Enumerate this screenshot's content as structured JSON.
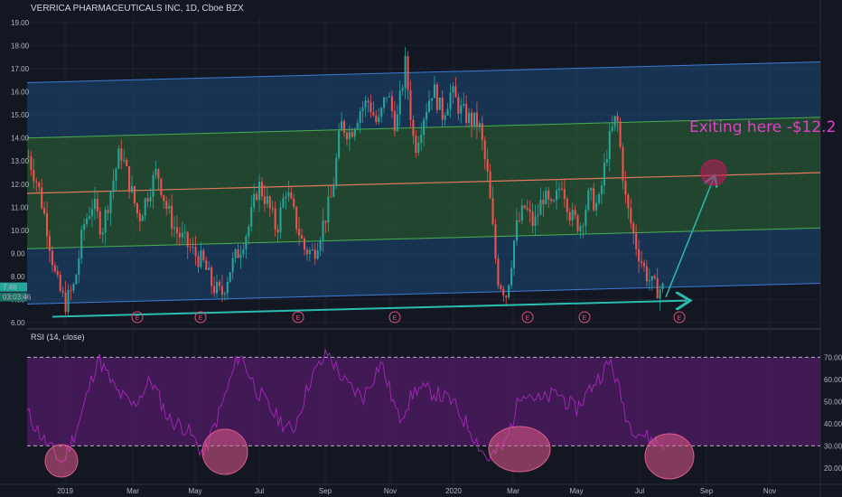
{
  "chart_data": [
    {
      "type": "candlestick",
      "title": "VERRICA PHARMACEUTICALS INC, 1D, Cboe BZX",
      "ylim": [
        5.8,
        19.2
      ],
      "y_ticks": [
        "19.00",
        "18.00",
        "17.00",
        "16.00",
        "15.00",
        "14.00",
        "13.00",
        "12.00",
        "11.00",
        "10.00",
        "9.00",
        "8.00",
        "7.00",
        "6.00"
      ],
      "x_ticks": [
        "2019",
        "Mar",
        "May",
        "Jul",
        "Sep",
        "Nov",
        "2020",
        "Mar",
        "May",
        "Jul",
        "Sep",
        "Nov"
      ],
      "price_label": "7.46",
      "countdown_label": "03:03:46",
      "approx_closes": [
        {
          "x": "Dec 2018",
          "y": 13.2
        },
        {
          "x": "Dec 2018",
          "y": 12.0
        },
        {
          "x": "Dec 2018",
          "y": 10.2
        },
        {
          "x": "Dec 2018",
          "y": 7.8
        },
        {
          "x": "Dec 2018",
          "y": 6.8
        },
        {
          "x": "Jan 2019",
          "y": 7.6
        },
        {
          "x": "Jan 2019",
          "y": 10.2
        },
        {
          "x": "Jan 2019",
          "y": 11.2
        },
        {
          "x": "Feb 2019",
          "y": 10.0
        },
        {
          "x": "Feb 2019",
          "y": 11.8
        },
        {
          "x": "Feb 2019",
          "y": 13.5
        },
        {
          "x": "Feb 2019",
          "y": 12.0
        },
        {
          "x": "Mar 2019",
          "y": 10.5
        },
        {
          "x": "Mar 2019",
          "y": 11.6
        },
        {
          "x": "Mar 2019",
          "y": 12.6
        },
        {
          "x": "Apr 2019",
          "y": 11.0
        },
        {
          "x": "Apr 2019",
          "y": 10.0
        },
        {
          "x": "Apr 2019",
          "y": 9.5
        },
        {
          "x": "May 2019",
          "y": 9.0
        },
        {
          "x": "May 2019",
          "y": 8.6
        },
        {
          "x": "Jun 2019",
          "y": 7.6
        },
        {
          "x": "Jun 2019",
          "y": 7.2
        },
        {
          "x": "Jun 2019",
          "y": 8.4
        },
        {
          "x": "Jun 2019",
          "y": 9.2
        },
        {
          "x": "Jul 2019",
          "y": 10.2
        },
        {
          "x": "Jul 2019",
          "y": 12.0
        },
        {
          "x": "Jul 2019",
          "y": 11.2
        },
        {
          "x": "Aug 2019",
          "y": 10.0
        },
        {
          "x": "Aug 2019",
          "y": 11.8
        },
        {
          "x": "Aug 2019",
          "y": 10.5
        },
        {
          "x": "Aug 2019",
          "y": 9.2
        },
        {
          "x": "Aug 2019",
          "y": 9.0
        },
        {
          "x": "Sep 2019",
          "y": 10.2
        },
        {
          "x": "Sep 2019",
          "y": 11.5
        },
        {
          "x": "Sep 2019",
          "y": 14.6
        },
        {
          "x": "Sep 2019",
          "y": 14.2
        },
        {
          "x": "Oct 2019",
          "y": 15.2
        },
        {
          "x": "Oct 2019",
          "y": 15.6
        },
        {
          "x": "Oct 2019",
          "y": 14.5
        },
        {
          "x": "Nov 2019",
          "y": 16.0
        },
        {
          "x": "Nov 2019",
          "y": 14.5
        },
        {
          "x": "Nov 2019",
          "y": 17.2
        },
        {
          "x": "Nov 2019",
          "y": 13.5
        },
        {
          "x": "Dec 2019",
          "y": 15.0
        },
        {
          "x": "Dec 2019",
          "y": 16.2
        },
        {
          "x": "Jan 2020",
          "y": 15.0
        },
        {
          "x": "Jan 2020",
          "y": 16.0
        },
        {
          "x": "Jan 2020",
          "y": 15.2
        },
        {
          "x": "Feb 2020",
          "y": 14.8
        },
        {
          "x": "Feb 2020",
          "y": 14.6
        },
        {
          "x": "Feb 2020",
          "y": 12.2
        },
        {
          "x": "Mar 2020",
          "y": 8.0
        },
        {
          "x": "Mar 2020",
          "y": 7.2
        },
        {
          "x": "Mar 2020",
          "y": 10.0
        },
        {
          "x": "Mar 2020",
          "y": 11.0
        },
        {
          "x": "Apr 2020",
          "y": 10.2
        },
        {
          "x": "Apr 2020",
          "y": 11.5
        },
        {
          "x": "Apr 2020",
          "y": 10.8
        },
        {
          "x": "May 2020",
          "y": 12.2
        },
        {
          "x": "May 2020",
          "y": 10.6
        },
        {
          "x": "May 2020",
          "y": 10.2
        },
        {
          "x": "Jun 2020",
          "y": 11.5
        },
        {
          "x": "Jun 2020",
          "y": 11.0
        },
        {
          "x": "Jun 2020",
          "y": 13.6
        },
        {
          "x": "Jun 2020",
          "y": 15.0
        },
        {
          "x": "Jul 2020",
          "y": 11.2
        },
        {
          "x": "Jul 2020",
          "y": 9.5
        },
        {
          "x": "Jul 2020",
          "y": 8.3
        },
        {
          "x": "Jul 2020",
          "y": 7.5
        },
        {
          "x": "Jul 2020",
          "y": 7.46
        }
      ],
      "earnings_markers": [
        "E",
        "E",
        "E",
        "E",
        "E",
        "E",
        "E"
      ],
      "annotation": "Exiting here -$12.2",
      "regression_channel": {
        "mid_start": 11.6,
        "mid_end": 12.5,
        "bands": "green inner (±1), blue outer (±2)"
      },
      "colors": {
        "up": "#26a69a",
        "down": "#ef5350",
        "annotation": "#e040c8",
        "mid": "#e07a5a",
        "arrow": "#2bbcb0",
        "inner_band": "#2f6b3a",
        "outer_band": "#1e4a7a"
      }
    },
    {
      "type": "line",
      "title": "RSI (14, close)",
      "ylim": [
        13,
        82
      ],
      "y_ticks": [
        "70.00",
        "60.00",
        "50.00",
        "40.00",
        "30.00",
        "20.00"
      ],
      "levels": [
        70,
        30
      ],
      "approx_values": [
        {
          "x": "Dec 2018",
          "y": 45
        },
        {
          "x": "Dec 2018",
          "y": 32
        },
        {
          "x": "Dec 2018",
          "y": 22
        },
        {
          "x": "Jan 2019",
          "y": 42
        },
        {
          "x": "Feb 2019",
          "y": 70
        },
        {
          "x": "Feb 2019",
          "y": 55
        },
        {
          "x": "Mar 2019",
          "y": 48
        },
        {
          "x": "Mar 2019",
          "y": 60
        },
        {
          "x": "Apr 2019",
          "y": 42
        },
        {
          "x": "May 2019",
          "y": 38
        },
        {
          "x": "Jun 2019",
          "y": 26
        },
        {
          "x": "Jun 2019",
          "y": 48
        },
        {
          "x": "Jul 2019",
          "y": 72
        },
        {
          "x": "Jul 2019",
          "y": 55
        },
        {
          "x": "Aug 2019",
          "y": 44
        },
        {
          "x": "Aug 2019",
          "y": 36
        },
        {
          "x": "Sep 2019",
          "y": 60
        },
        {
          "x": "Sep 2019",
          "y": 72
        },
        {
          "x": "Oct 2019",
          "y": 58
        },
        {
          "x": "Nov 2019",
          "y": 52
        },
        {
          "x": "Nov 2019",
          "y": 68
        },
        {
          "x": "Nov 2019",
          "y": 42
        },
        {
          "x": "Dec 2019",
          "y": 56
        },
        {
          "x": "Jan 2020",
          "y": 54
        },
        {
          "x": "Feb 2020",
          "y": 50
        },
        {
          "x": "Feb 2020",
          "y": 38
        },
        {
          "x": "Mar 2020",
          "y": 24
        },
        {
          "x": "Mar 2020",
          "y": 30
        },
        {
          "x": "Apr 2020",
          "y": 56
        },
        {
          "x": "Apr 2020",
          "y": 50
        },
        {
          "x": "May 2020",
          "y": 54
        },
        {
          "x": "May 2020",
          "y": 46
        },
        {
          "x": "Jun 2020",
          "y": 58
        },
        {
          "x": "Jun 2020",
          "y": 68
        },
        {
          "x": "Jul 2020",
          "y": 40
        },
        {
          "x": "Jul 2020",
          "y": 34
        },
        {
          "x": "Jul 2020",
          "y": 30
        }
      ],
      "highlight_circles": 4,
      "colors": {
        "line": "#9c27b0",
        "band": "#4a1a5e",
        "highlight": "#e05a8a"
      }
    }
  ]
}
